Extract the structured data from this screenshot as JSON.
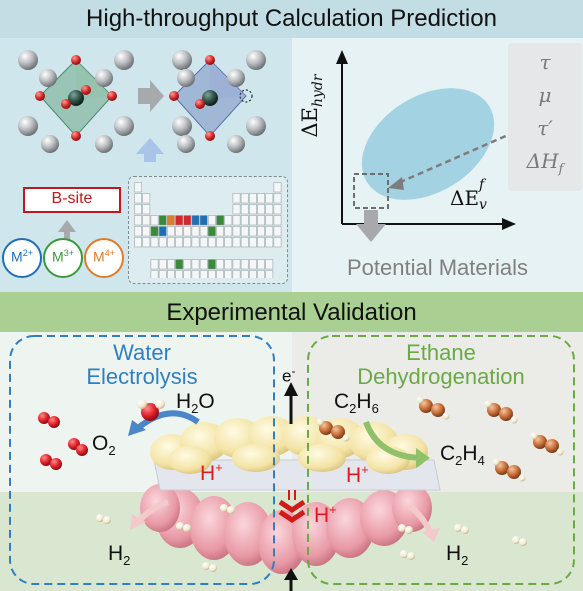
{
  "top": {
    "title": "High-throughput Calculation Prediction",
    "b_site_label": "B-site",
    "cations": [
      {
        "base": "M",
        "charge": "2+",
        "color": "#1f6fb5"
      },
      {
        "base": "M",
        "charge": "3+",
        "color": "#3a9a3a"
      },
      {
        "base": "M",
        "charge": "4+",
        "color": "#e07b2a"
      }
    ],
    "plot": {
      "y_axis_main": "ΔE",
      "y_axis_sub": "hydr",
      "x_axis_main": "ΔE",
      "x_axis_sub": "v",
      "x_axis_sup": "f"
    },
    "descriptors": [
      {
        "main": "τ",
        "prime": "",
        "sub": ""
      },
      {
        "main": "μ",
        "prime": "",
        "sub": ""
      },
      {
        "main": "τ",
        "prime": "′",
        "sub": ""
      },
      {
        "main": "ΔH",
        "prime": "",
        "sub": "f"
      }
    ],
    "result_label": "Potential Materials"
  },
  "bottom": {
    "title": "Experimental Validation",
    "left_title_line1": "Water",
    "left_title_line2": "Electrolysis",
    "right_title_line1": "Ethane",
    "right_title_line2": "Dehydrogenation",
    "electron": {
      "base": "e",
      "sup": "-"
    },
    "water": {
      "base": "H",
      "sub": "2",
      "tail": "O"
    },
    "oxygen": {
      "base": "O",
      "sub": "2"
    },
    "hydrogen_left": {
      "base": "H",
      "sub": "2"
    },
    "hydrogen_right": {
      "base": "H",
      "sub": "2"
    },
    "ethane": {
      "base": "C",
      "sub1": "2",
      "mid": "H",
      "sub2": "6"
    },
    "ethylene": {
      "base": "C",
      "sub1": "2",
      "mid": "H",
      "sub2": "4"
    },
    "proton": {
      "base": "H",
      "sup": "+"
    }
  },
  "colors": {
    "header_top": "#c2dde4",
    "header_bottom": "#a9cf92",
    "panel_left": "#cfe6ec",
    "panel_right": "#e7f2f4",
    "blue_accent": "#2f7fc1",
    "green_accent": "#6aaa45",
    "red_accent": "#e01b1b"
  }
}
